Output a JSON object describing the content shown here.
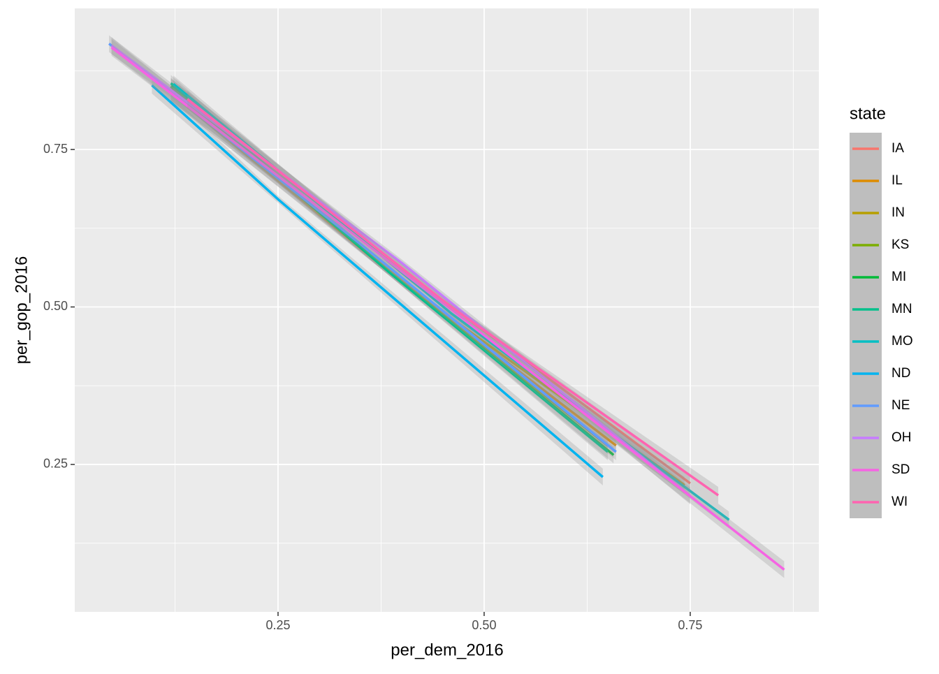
{
  "chart_data": {
    "type": "line",
    "x_label": "per_dem_2016",
    "y_label": "per_gop_2016",
    "legend_title": "state",
    "legend_position": "right",
    "xlim": [
      0.0034,
      0.906
    ],
    "ylim": [
      0.016,
      0.974
    ],
    "xticks": [
      0.25,
      {
        "value": 0.5,
        "label": "0.50"
      },
      0.75
    ],
    "yticks": [
      0.25,
      {
        "value": 0.5,
        "label": "0.50"
      },
      0.75
    ],
    "x_minor_ticks": [
      0.125,
      0.375,
      0.625,
      0.875
    ],
    "y_minor_ticks": [
      0.125,
      0.375,
      0.625,
      0.875
    ],
    "grid": true,
    "confidence_band": true,
    "series": [
      {
        "name": "IA",
        "color": "#F8766D",
        "x": [
          0.13,
          0.44,
          0.75
        ],
        "values": [
          0.84,
          0.52,
          0.22
        ]
      },
      {
        "name": "IL",
        "color": "#DE8C00",
        "x": [
          0.12,
          0.39,
          0.66
        ],
        "values": [
          0.84,
          0.55,
          0.28
        ]
      },
      {
        "name": "IN",
        "color": "#B79F00",
        "x": [
          0.12,
          0.43,
          0.743
        ],
        "values": [
          0.84,
          0.51,
          0.217
        ]
      },
      {
        "name": "KS",
        "color": "#7CAE00",
        "x": [
          0.12,
          0.385,
          0.65
        ],
        "values": [
          0.85,
          0.555,
          0.28
        ]
      },
      {
        "name": "MI",
        "color": "#00BA38",
        "x": [
          0.12,
          0.39,
          0.657
        ],
        "values": [
          0.85,
          0.55,
          0.265
        ]
      },
      {
        "name": "MN",
        "color": "#00C08B",
        "x": [
          0.12,
          0.385,
          0.65
        ],
        "values": [
          0.855,
          0.555,
          0.27
        ]
      },
      {
        "name": "MO",
        "color": "#00BFC4",
        "x": [
          0.123,
          0.46,
          0.797
        ],
        "values": [
          0.854,
          0.49,
          0.162
        ]
      },
      {
        "name": "ND",
        "color": "#00B4F0",
        "x": [
          0.097,
          0.25,
          0.644
        ],
        "values": [
          0.852,
          0.671,
          0.23
        ]
      },
      {
        "name": "NE",
        "color": "#619CFF",
        "x": [
          0.045,
          0.35,
          0.66
        ],
        "values": [
          0.918,
          0.6,
          0.27
        ]
      },
      {
        "name": "OH",
        "color": "#C77CFF",
        "x": [
          0.048,
          0.4,
          0.75
        ],
        "values": [
          0.915,
          0.57,
          0.2
        ]
      },
      {
        "name": "SD",
        "color": "#F564E3",
        "x": [
          0.048,
          0.456,
          0.864
        ],
        "values": [
          0.912,
          0.5,
          0.083
        ]
      },
      {
        "name": "WI",
        "color": "#FF64B0",
        "x": [
          0.14,
          0.46,
          0.784
        ],
        "values": [
          0.83,
          0.5,
          0.201
        ]
      }
    ]
  }
}
